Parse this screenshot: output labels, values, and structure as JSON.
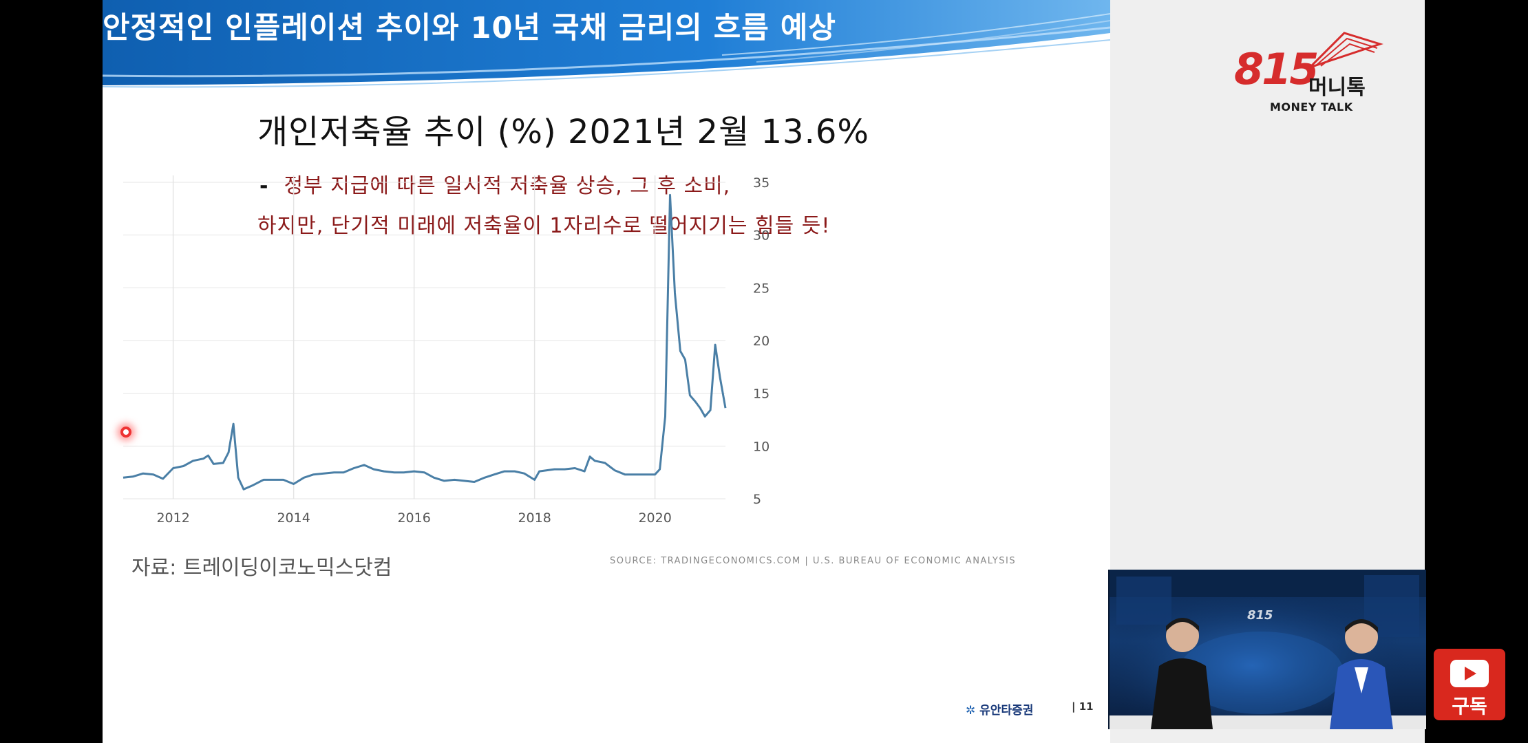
{
  "slide": {
    "banner_title": "안정적인 인플레이션 추이와 10년 국채 금리의 흐름 예상",
    "chart_heading": "개인저축율 추이 (%) 2021년 2월 13.6%",
    "note_dash": "-",
    "note_line1": "정부 지급에 따른 일시적 저축율 상승, 그 후 소비,",
    "note_line2": "하지만, 단기적 미래에 저축율이 1자리수로 떨어지기는 힘들 듯!",
    "source_ko": "자료: 트레이딩이코노믹스닷컴",
    "source_en": "SOURCE: TRADINGECONOMICS.COM  |  U.S. BUREAU OF ECONOMIC ANALYSIS",
    "footer_brand": "유안타증권",
    "footer_page": "| 11"
  },
  "logo": {
    "number": "815",
    "korean": "머니톡",
    "english": "MONEY TALK"
  },
  "subscribe": {
    "label": "구독"
  },
  "colors": {
    "banner": "#1f7ed6",
    "note": "#8b1a1a",
    "line": "#4a7fa6",
    "brand_red": "#d62c2c",
    "subscribe_red": "#d9281e"
  },
  "chart_data": {
    "type": "line",
    "title": "개인저축율 추이 (%) 2021년 2월 13.6%",
    "xlabel": "",
    "ylabel": "",
    "x_ticks": [
      "2012",
      "2014",
      "2016",
      "2018",
      "2020"
    ],
    "y_ticks": [
      5,
      10,
      15,
      20,
      25,
      30,
      35
    ],
    "ylim": [
      5,
      35
    ],
    "xlim": [
      2011.17,
      2021.17
    ],
    "grid": true,
    "y_axis_side": "right",
    "series": [
      {
        "values": [
          [
            2011.17,
            7.0
          ],
          [
            2011.33,
            7.1
          ],
          [
            2011.5,
            7.4
          ],
          [
            2011.67,
            7.3
          ],
          [
            2011.83,
            6.9
          ],
          [
            2012.0,
            7.9
          ],
          [
            2012.17,
            8.1
          ],
          [
            2012.33,
            8.6
          ],
          [
            2012.5,
            8.8
          ],
          [
            2012.58,
            9.1
          ],
          [
            2012.67,
            8.3
          ],
          [
            2012.83,
            8.4
          ],
          [
            2012.92,
            9.4
          ],
          [
            2013.0,
            12.1
          ],
          [
            2013.08,
            7.0
          ],
          [
            2013.17,
            5.9
          ],
          [
            2013.33,
            6.3
          ],
          [
            2013.5,
            6.8
          ],
          [
            2013.67,
            6.8
          ],
          [
            2013.83,
            6.8
          ],
          [
            2014.0,
            6.4
          ],
          [
            2014.17,
            7.0
          ],
          [
            2014.33,
            7.3
          ],
          [
            2014.5,
            7.4
          ],
          [
            2014.67,
            7.5
          ],
          [
            2014.83,
            7.5
          ],
          [
            2015.0,
            7.9
          ],
          [
            2015.17,
            8.2
          ],
          [
            2015.33,
            7.8
          ],
          [
            2015.5,
            7.6
          ],
          [
            2015.67,
            7.5
          ],
          [
            2015.83,
            7.5
          ],
          [
            2016.0,
            7.6
          ],
          [
            2016.17,
            7.5
          ],
          [
            2016.33,
            7.0
          ],
          [
            2016.5,
            6.7
          ],
          [
            2016.67,
            6.8
          ],
          [
            2016.83,
            6.7
          ],
          [
            2017.0,
            6.6
          ],
          [
            2017.17,
            7.0
          ],
          [
            2017.33,
            7.3
          ],
          [
            2017.5,
            7.6
          ],
          [
            2017.67,
            7.6
          ],
          [
            2017.83,
            7.4
          ],
          [
            2018.0,
            6.8
          ],
          [
            2018.08,
            7.6
          ],
          [
            2018.33,
            7.8
          ],
          [
            2018.5,
            7.8
          ],
          [
            2018.67,
            7.9
          ],
          [
            2018.83,
            7.6
          ],
          [
            2018.92,
            9.0
          ],
          [
            2019.0,
            8.6
          ],
          [
            2019.17,
            8.4
          ],
          [
            2019.33,
            7.7
          ],
          [
            2019.5,
            7.3
          ],
          [
            2019.67,
            7.3
          ],
          [
            2019.83,
            7.3
          ],
          [
            2020.0,
            7.3
          ],
          [
            2020.08,
            7.8
          ],
          [
            2020.17,
            12.8
          ],
          [
            2020.25,
            33.8
          ],
          [
            2020.33,
            24.5
          ],
          [
            2020.42,
            19.0
          ],
          [
            2020.5,
            18.2
          ],
          [
            2020.58,
            14.8
          ],
          [
            2020.67,
            14.2
          ],
          [
            2020.75,
            13.6
          ],
          [
            2020.83,
            12.8
          ],
          [
            2020.92,
            13.4
          ],
          [
            2021.0,
            19.6
          ],
          [
            2021.08,
            16.5
          ],
          [
            2021.17,
            13.6
          ]
        ]
      }
    ]
  }
}
